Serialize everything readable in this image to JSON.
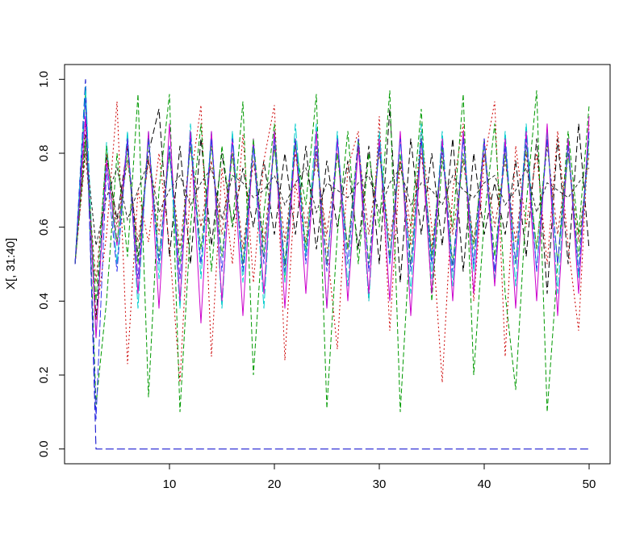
{
  "chart_data": {
    "type": "line",
    "title": "",
    "xlabel": "",
    "ylabel": "X[, 31:40]",
    "xlim": [
      0,
      52
    ],
    "ylim": [
      -0.04,
      1.04
    ],
    "x_ticks": [
      10,
      20,
      30,
      40,
      50
    ],
    "y_ticks": [
      0.0,
      0.2,
      0.4,
      0.6,
      0.8,
      1.0
    ],
    "y_tick_labels": [
      "0.0",
      "0.2",
      "0.4",
      "0.6",
      "0.8",
      "1.0"
    ],
    "x_tick_labels": [
      "10",
      "20",
      "30",
      "40",
      "50"
    ],
    "grid": false,
    "legend": "none",
    "x": [
      1,
      2,
      3,
      4,
      5,
      6,
      7,
      8,
      9,
      10,
      11,
      12,
      13,
      14,
      15,
      16,
      17,
      18,
      19,
      20,
      21,
      22,
      23,
      24,
      25,
      26,
      27,
      28,
      29,
      30,
      31,
      32,
      33,
      34,
      35,
      36,
      37,
      38,
      39,
      40,
      41,
      42,
      43,
      44,
      45,
      46,
      47,
      48,
      49,
      50
    ],
    "series": [
      {
        "color": "#000000",
        "dash": "8,4",
        "values": [
          0.5,
          0.85,
          0.35,
          0.79,
          0.62,
          0.82,
          0.52,
          0.8,
          0.92,
          0.52,
          0.82,
          0.5,
          0.84,
          0.55,
          0.8,
          0.6,
          0.76,
          0.6,
          0.78,
          0.58,
          0.8,
          0.58,
          0.82,
          0.54,
          0.78,
          0.6,
          0.78,
          0.54,
          0.82,
          0.5,
          0.92,
          0.45,
          0.84,
          0.58,
          0.8,
          0.55,
          0.84,
          0.48,
          0.8,
          0.58,
          0.72,
          0.58,
          0.78,
          0.52,
          0.84,
          0.42,
          0.84,
          0.5,
          0.88,
          0.54
        ]
      },
      {
        "color": "#cc0000",
        "dash": "2,3",
        "values": [
          0.5,
          0.88,
          0.35,
          0.58,
          0.94,
          0.23,
          0.7,
          0.56,
          0.8,
          0.55,
          0.18,
          0.72,
          0.93,
          0.25,
          0.76,
          0.5,
          0.85,
          0.45,
          0.78,
          0.93,
          0.24,
          0.72,
          0.56,
          0.8,
          0.55,
          0.27,
          0.76,
          0.86,
          0.4,
          0.9,
          0.32,
          0.78,
          0.55,
          0.86,
          0.6,
          0.18,
          0.7,
          0.88,
          0.4,
          0.78,
          0.94,
          0.25,
          0.82,
          0.6,
          0.8,
          0.5,
          0.86,
          0.55,
          0.32,
          0.88
        ]
      },
      {
        "color": "#009900",
        "dash": "6,3",
        "values": [
          0.5,
          0.96,
          0.12,
          0.4,
          0.8,
          0.52,
          0.96,
          0.14,
          0.7,
          0.96,
          0.1,
          0.6,
          0.88,
          0.48,
          0.82,
          0.6,
          0.94,
          0.2,
          0.64,
          0.88,
          0.46,
          0.82,
          0.66,
          0.96,
          0.11,
          0.58,
          0.86,
          0.5,
          0.8,
          0.6,
          0.97,
          0.1,
          0.6,
          0.92,
          0.4,
          0.78,
          0.6,
          0.96,
          0.2,
          0.62,
          0.88,
          0.42,
          0.16,
          0.66,
          0.97,
          0.1,
          0.5,
          0.86,
          0.58,
          0.93
        ]
      },
      {
        "color": "#0000cc",
        "dash": "10,4",
        "values": [
          0.5,
          1.0,
          0.0,
          0.0,
          0.0,
          0.0,
          0.0,
          0.0,
          0.0,
          0.0,
          0.0,
          0.0,
          0.0,
          0.0,
          0.0,
          0.0,
          0.0,
          0.0,
          0.0,
          0.0,
          0.0,
          0.0,
          0.0,
          0.0,
          0.0,
          0.0,
          0.0,
          0.0,
          0.0,
          0.0,
          0.0,
          0.0,
          0.0,
          0.0,
          0.0,
          0.0,
          0.0,
          0.0,
          0.0,
          0.0,
          0.0,
          0.0,
          0.0,
          0.0,
          0.0,
          0.0,
          0.0,
          0.0,
          0.0,
          0.0
        ]
      },
      {
        "color": "#00cccc",
        "dash": "12,3",
        "values": [
          0.5,
          0.98,
          0.3,
          0.83,
          0.5,
          0.86,
          0.38,
          0.86,
          0.46,
          0.82,
          0.38,
          0.88,
          0.46,
          0.86,
          0.38,
          0.86,
          0.45,
          0.82,
          0.38,
          0.86,
          0.45,
          0.88,
          0.52,
          0.88,
          0.38,
          0.86,
          0.44,
          0.82,
          0.4,
          0.86,
          0.5,
          0.84,
          0.42,
          0.88,
          0.46,
          0.86,
          0.44,
          0.86,
          0.48,
          0.82,
          0.46,
          0.86,
          0.44,
          0.88,
          0.48,
          0.86,
          0.42,
          0.84,
          0.46,
          0.84
        ]
      },
      {
        "color": "#cc00cc",
        "dash": "",
        "values": [
          0.5,
          0.9,
          0.3,
          0.78,
          0.55,
          0.84,
          0.42,
          0.86,
          0.38,
          0.88,
          0.4,
          0.86,
          0.34,
          0.86,
          0.4,
          0.84,
          0.36,
          0.84,
          0.42,
          0.86,
          0.38,
          0.84,
          0.42,
          0.86,
          0.38,
          0.84,
          0.4,
          0.82,
          0.42,
          0.84,
          0.4,
          0.86,
          0.36,
          0.84,
          0.42,
          0.84,
          0.4,
          0.86,
          0.42,
          0.84,
          0.44,
          0.84,
          0.38,
          0.86,
          0.4,
          0.88,
          0.36,
          0.84,
          0.42,
          0.9
        ]
      },
      {
        "color": "#222222",
        "dash": "4,3",
        "values": [
          0.5,
          0.82,
          0.55,
          0.68,
          0.76,
          0.62,
          0.7,
          0.78,
          0.64,
          0.7,
          0.74,
          0.66,
          0.72,
          0.76,
          0.62,
          0.74,
          0.72,
          0.68,
          0.7,
          0.74,
          0.66,
          0.72,
          0.76,
          0.64,
          0.72,
          0.7,
          0.68,
          0.72,
          0.74,
          0.64,
          0.72,
          0.76,
          0.66,
          0.72,
          0.7,
          0.66,
          0.74,
          0.7,
          0.68,
          0.72,
          0.74,
          0.66,
          0.7,
          0.76,
          0.64,
          0.72,
          0.7,
          0.68,
          0.72,
          0.76
        ]
      },
      {
        "color": "#aa2222",
        "dash": "3,3",
        "values": [
          0.5,
          0.8,
          0.45,
          0.8,
          0.6,
          0.78,
          0.56,
          0.78,
          0.58,
          0.8,
          0.54,
          0.82,
          0.6,
          0.78,
          0.58,
          0.8,
          0.54,
          0.78,
          0.56,
          0.82,
          0.56,
          0.8,
          0.6,
          0.78,
          0.58,
          0.8,
          0.54,
          0.82,
          0.58,
          0.8,
          0.56,
          0.78,
          0.6,
          0.8,
          0.54,
          0.8,
          0.58,
          0.78,
          0.56,
          0.8,
          0.6,
          0.78,
          0.56,
          0.8,
          0.54,
          0.82,
          0.58,
          0.8,
          0.56,
          0.8
        ]
      },
      {
        "color": "#22aa22",
        "dash": "7,3",
        "values": [
          0.5,
          0.84,
          0.4,
          0.82,
          0.56,
          0.8,
          0.5,
          0.84,
          0.52,
          0.8,
          0.5,
          0.82,
          0.54,
          0.82,
          0.52,
          0.8,
          0.5,
          0.84,
          0.52,
          0.82,
          0.5,
          0.84,
          0.54,
          0.82,
          0.5,
          0.8,
          0.54,
          0.84,
          0.5,
          0.82,
          0.52,
          0.8,
          0.5,
          0.84,
          0.52,
          0.82,
          0.5,
          0.8,
          0.54,
          0.84,
          0.52,
          0.8,
          0.5,
          0.82,
          0.54,
          0.84,
          0.5,
          0.8,
          0.52,
          0.84
        ]
      },
      {
        "color": "#3333ee",
        "dash": "9,3",
        "values": [
          0.5,
          0.95,
          0.08,
          0.76,
          0.48,
          0.84,
          0.46,
          0.84,
          0.5,
          0.82,
          0.46,
          0.84,
          0.5,
          0.84,
          0.48,
          0.84,
          0.48,
          0.82,
          0.5,
          0.84,
          0.48,
          0.84,
          0.5,
          0.82,
          0.48,
          0.84,
          0.5,
          0.84,
          0.48,
          0.82,
          0.5,
          0.84,
          0.48,
          0.84,
          0.5,
          0.82,
          0.48,
          0.84,
          0.5,
          0.84,
          0.48,
          0.82,
          0.5,
          0.84,
          0.48,
          0.84,
          0.5,
          0.82,
          0.48,
          0.86
        ]
      }
    ]
  }
}
